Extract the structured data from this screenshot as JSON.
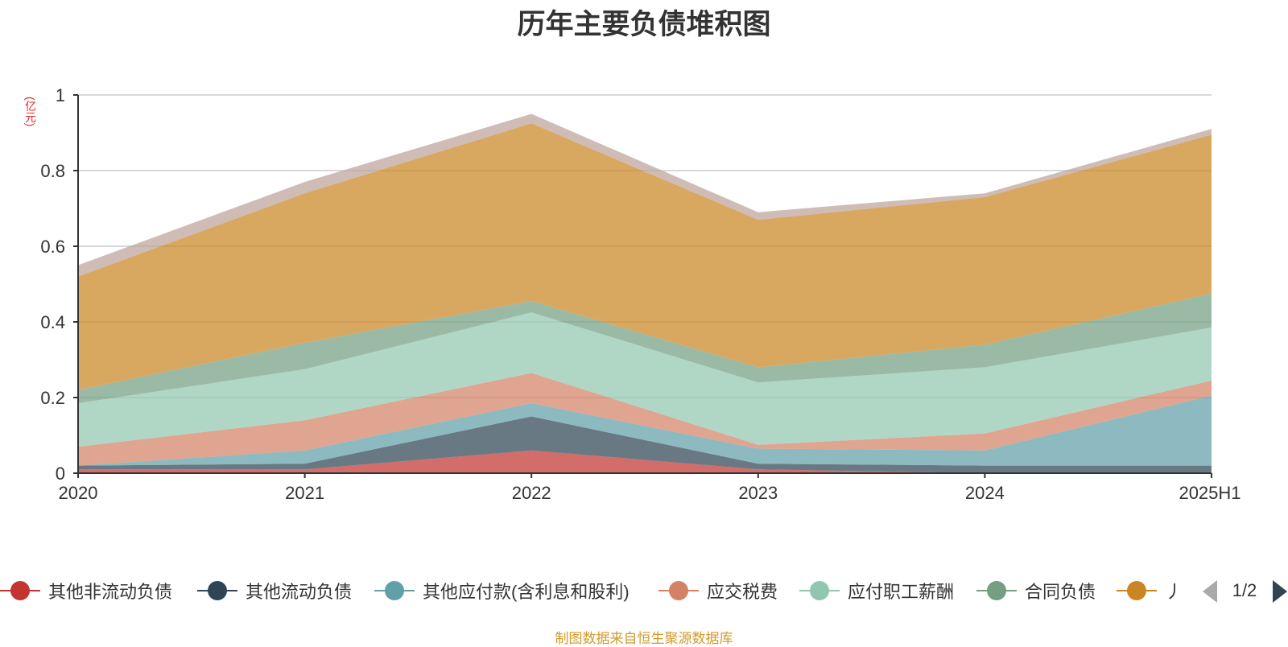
{
  "title": "历年主要负债堆积图",
  "unit_label": "(亿元)",
  "source": "制图数据来自恒生聚源数据库",
  "legend_page": "1/2",
  "chart_data": {
    "type": "area",
    "stacked": true,
    "title": "历年主要负债堆积图",
    "ylabel": "(亿元)",
    "xlabel": "",
    "categories": [
      "2020",
      "2021",
      "2022",
      "2023",
      "2024",
      "2025H1"
    ],
    "ylim": [
      0,
      1
    ],
    "yticks": [
      0,
      0.2,
      0.4,
      0.6,
      0.8,
      1
    ],
    "grid": true,
    "legend_position": "bottom",
    "series": [
      {
        "name": "其他非流动负债",
        "color": "#c23531",
        "values": [
          0.01,
          0.01,
          0.06,
          0.01,
          0.0,
          0.0
        ]
      },
      {
        "name": "其他流动负债",
        "color": "#2f4554",
        "values": [
          0.01,
          0.015,
          0.09,
          0.015,
          0.02,
          0.02
        ]
      },
      {
        "name": "其他应付款(含利息和股利)",
        "color": "#61a0a8",
        "values": [
          0.0,
          0.035,
          0.035,
          0.04,
          0.04,
          0.185
        ]
      },
      {
        "name": "应交税费",
        "color": "#d48265",
        "values": [
          0.05,
          0.08,
          0.08,
          0.01,
          0.045,
          0.04
        ]
      },
      {
        "name": "应付职工薪酬",
        "color": "#91c7ae",
        "values": [
          0.115,
          0.135,
          0.16,
          0.165,
          0.175,
          0.14
        ]
      },
      {
        "name": "合同负债",
        "color": "#749f83",
        "values": [
          0.035,
          0.07,
          0.03,
          0.04,
          0.06,
          0.09
        ]
      },
      {
        "name": "应付账款",
        "legend_label": "丿",
        "color": "#ca8622",
        "values": [
          0.3,
          0.395,
          0.47,
          0.39,
          0.39,
          0.42
        ]
      },
      {
        "name": "",
        "color": "#bda29a",
        "values": [
          0.03,
          0.03,
          0.025,
          0.02,
          0.01,
          0.015
        ]
      }
    ]
  }
}
